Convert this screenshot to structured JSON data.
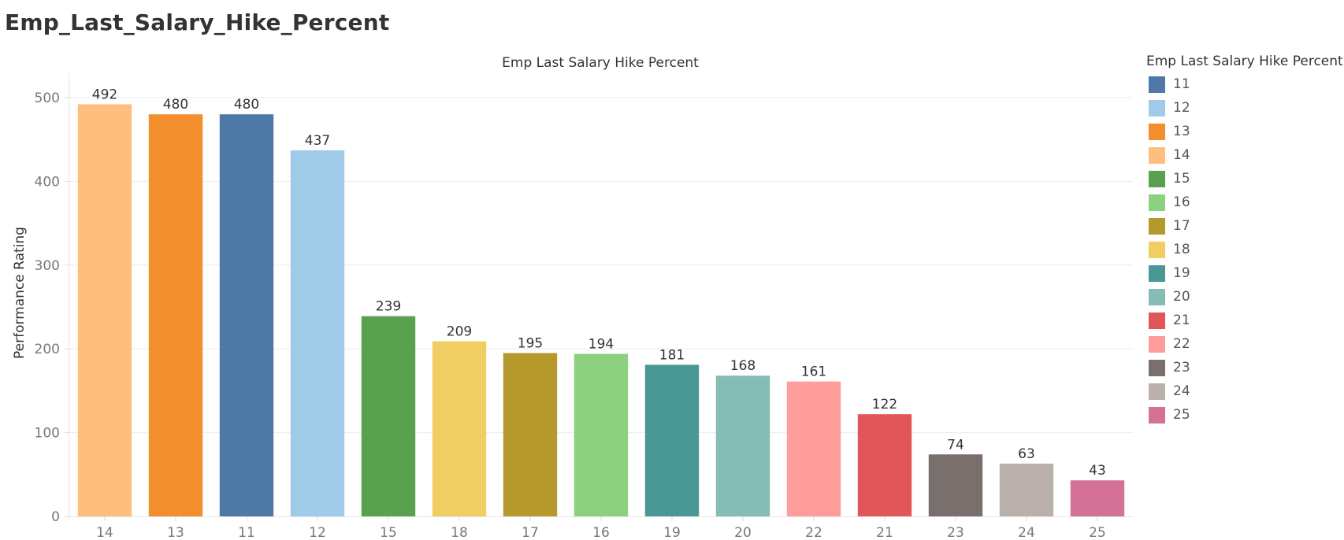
{
  "page": {
    "title": "Emp_Last_Salary_Hike_Percent"
  },
  "chart_data": {
    "type": "bar",
    "title": "Emp Last Salary Hike Percent",
    "xlabel": "",
    "ylabel": "Performance Rating",
    "categories": [
      "14",
      "13",
      "11",
      "12",
      "15",
      "18",
      "17",
      "16",
      "19",
      "20",
      "22",
      "21",
      "23",
      "24",
      "25"
    ],
    "values": [
      492,
      480,
      480,
      437,
      239,
      209,
      195,
      194,
      181,
      168,
      161,
      122,
      74,
      63,
      43
    ],
    "bar_colors": [
      "#FFBE7D",
      "#F28E2B",
      "#4E79A7",
      "#A0CBE8",
      "#59A14F",
      "#F1CE63",
      "#B6992D",
      "#8CD17D",
      "#499894",
      "#86BCB6",
      "#FF9D9A",
      "#E15759",
      "#79706E",
      "#BAB0AC",
      "#D37295"
    ],
    "yticks": [
      0,
      100,
      200,
      300,
      400,
      500
    ],
    "ylim": [
      0,
      530
    ],
    "grid": true,
    "data_labels": true,
    "legend": {
      "title": "Emp Last Salary Hike Percent",
      "placement": "right",
      "items": [
        {
          "label": "11",
          "color": "#4E79A7"
        },
        {
          "label": "12",
          "color": "#A0CBE8"
        },
        {
          "label": "13",
          "color": "#F28E2B"
        },
        {
          "label": "14",
          "color": "#FFBE7D"
        },
        {
          "label": "15",
          "color": "#59A14F"
        },
        {
          "label": "16",
          "color": "#8CD17D"
        },
        {
          "label": "17",
          "color": "#B6992D"
        },
        {
          "label": "18",
          "color": "#F1CE63"
        },
        {
          "label": "19",
          "color": "#499894"
        },
        {
          "label": "20",
          "color": "#86BCB6"
        },
        {
          "label": "21",
          "color": "#E15759"
        },
        {
          "label": "22",
          "color": "#FF9D9A"
        },
        {
          "label": "23",
          "color": "#79706E"
        },
        {
          "label": "24",
          "color": "#BAB0AC"
        },
        {
          "label": "25",
          "color": "#D37295"
        }
      ]
    }
  }
}
